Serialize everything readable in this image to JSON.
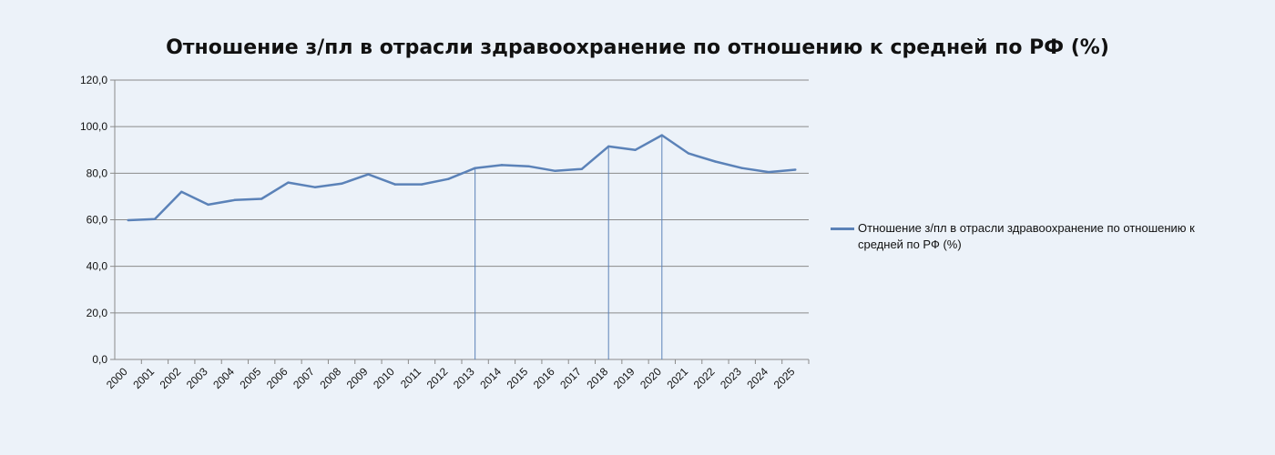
{
  "chart_data": {
    "type": "line",
    "title": "Отношение з/пл в отрасли здравоохранение по отношению к средней по РФ (%)",
    "xlabel": "",
    "ylabel": "",
    "categories": [
      "2000",
      "2001",
      "2002",
      "2003",
      "2004",
      "2005",
      "2006",
      "2007",
      "2008",
      "2009",
      "2010",
      "2011",
      "2012",
      "2013",
      "2014",
      "2015",
      "2016",
      "2017",
      "2018",
      "2019",
      "2020",
      "2021",
      "2022",
      "2023",
      "2024",
      "2025"
    ],
    "ylim": [
      0,
      120
    ],
    "yticks": [
      "0,0",
      "20,0",
      "40,0",
      "60,0",
      "80,0",
      "100,0",
      "120,0"
    ],
    "series": [
      {
        "name": "Отношение з/пл в отрасли здравоохранение по отношению к средней по РФ (%)",
        "values": [
          59.8,
          60.3,
          72.0,
          66.5,
          68.5,
          69.0,
          76.0,
          74.0,
          75.5,
          79.5,
          75.2,
          75.2,
          77.5,
          82.2,
          83.5,
          83.0,
          81.0,
          81.8,
          91.5,
          90.0,
          96.3,
          88.5,
          85.0,
          82.2,
          80.5,
          81.5
        ]
      }
    ],
    "drop_lines_at": [
      "2013",
      "2018",
      "2020"
    ],
    "grid": true,
    "legend_position": "right",
    "line_color": "#5b82b8"
  }
}
